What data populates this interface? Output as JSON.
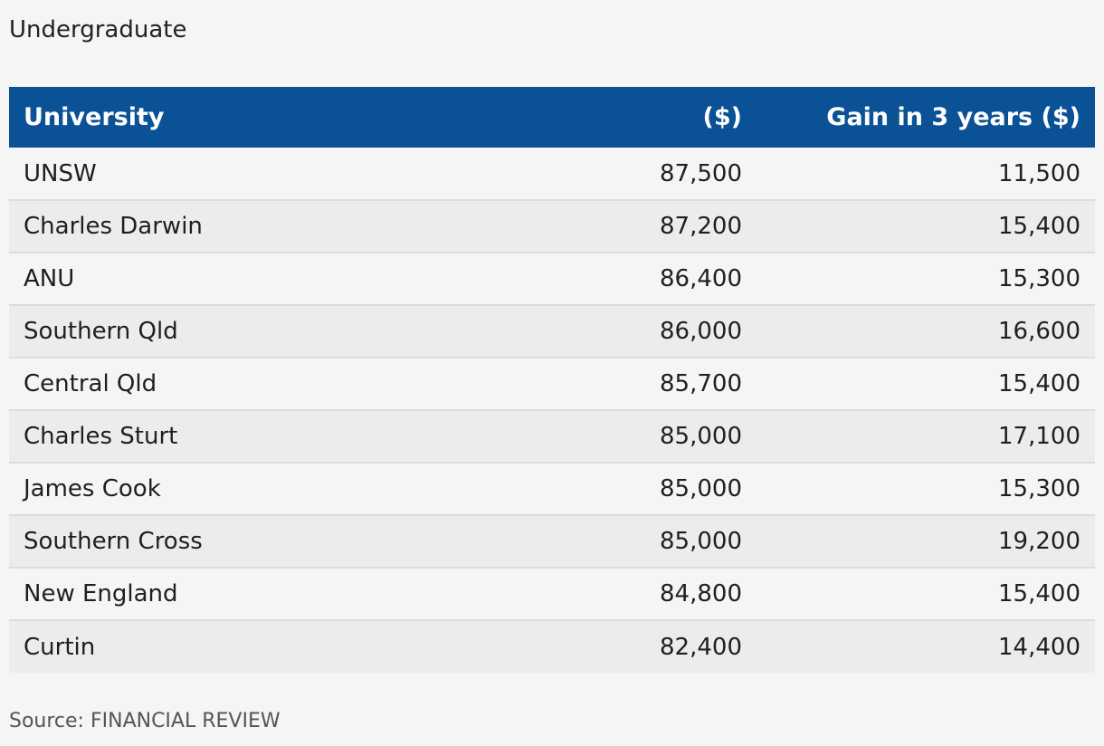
{
  "chart_data": {
    "type": "table",
    "subtitle": "Undergraduate",
    "columns": [
      "University",
      "($)",
      "Gain in 3 years ($)"
    ],
    "rows": [
      [
        "UNSW",
        "87,500",
        "11,500"
      ],
      [
        "Charles Darwin",
        "87,200",
        "15,400"
      ],
      [
        "ANU",
        "86,400",
        "15,300"
      ],
      [
        "Southern Qld",
        "86,000",
        "16,600"
      ],
      [
        "Central Qld",
        "85,700",
        "15,400"
      ],
      [
        "Charles Sturt",
        "85,000",
        "17,100"
      ],
      [
        "James Cook",
        "85,000",
        "15,300"
      ],
      [
        "Southern Cross",
        "85,000",
        "19,200"
      ],
      [
        "New England",
        "84,800",
        "15,400"
      ],
      [
        "Curtin",
        "82,400",
        "14,400"
      ]
    ],
    "source": "Source: FINANCIAL REVIEW"
  },
  "colors": {
    "header_bg": "#0a5196",
    "header_text": "#ffffff",
    "row_odd": "#f5f5f5",
    "row_even": "#ececec"
  }
}
